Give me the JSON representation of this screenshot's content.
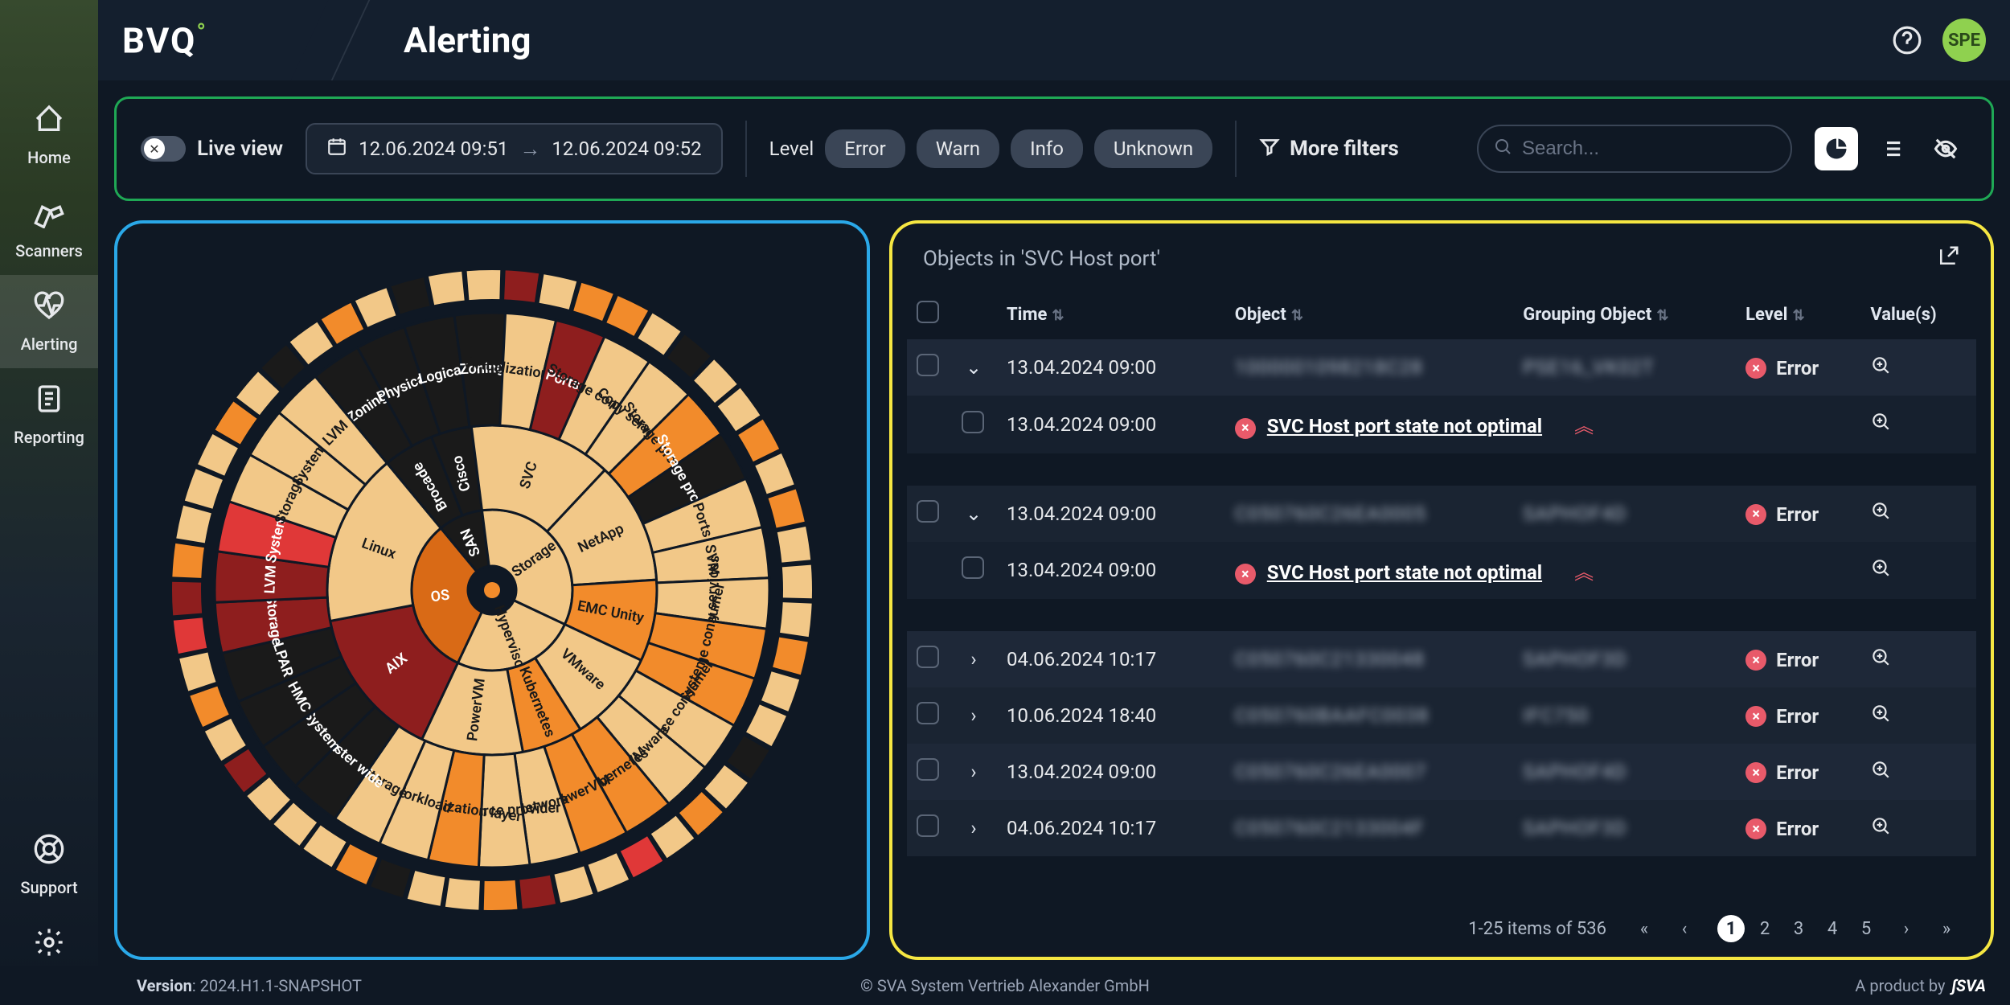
{
  "header": {
    "logo": "BVQ",
    "page_title": "Alerting",
    "avatar_initials": "SPE"
  },
  "sidebar": {
    "items": [
      {
        "label": "Home",
        "icon": "home"
      },
      {
        "label": "Scanners",
        "icon": "telescope"
      },
      {
        "label": "Alerting",
        "icon": "heartbeat",
        "active": true
      },
      {
        "label": "Reporting",
        "icon": "document"
      }
    ],
    "bottom": [
      {
        "label": "Support",
        "icon": "lifebuoy"
      },
      {
        "label": "Admin",
        "icon": "gear"
      }
    ]
  },
  "filters": {
    "live_label": "Live view",
    "date_from": "12.06.2024 09:51",
    "date_to": "12.06.2024 09:52",
    "level_label": "Level",
    "level_chips": [
      "Error",
      "Warn",
      "Info",
      "Unknown"
    ],
    "more_filters": "More filters",
    "search_placeholder": "Search..."
  },
  "table": {
    "title": "Objects in 'SVC Host port'",
    "columns": [
      "",
      "",
      "Time",
      "Object",
      "Grouping Object",
      "Level",
      "Value(s)"
    ],
    "detail_text": "SVC Host port state not optimal",
    "rows": [
      {
        "expanded": true,
        "time": "13.04.2024 09:00",
        "object": "1000001098218C28",
        "group": "PSE16_VK02T",
        "level": "Error",
        "detail_time": "13.04.2024 09:00"
      },
      {
        "expanded": true,
        "time": "13.04.2024 09:00",
        "object": "C050760C26EA0005",
        "group": "SAPHOF4D",
        "level": "Error",
        "detail_time": "13.04.2024 09:00"
      },
      {
        "expanded": false,
        "time": "04.06.2024 10:17",
        "object": "C050760C21330048",
        "group": "SAPHOF3D",
        "level": "Error"
      },
      {
        "expanded": false,
        "time": "10.06.2024 18:40",
        "object": "C050760BAAFC0038",
        "group": "IFC750",
        "level": "Error"
      },
      {
        "expanded": false,
        "time": "13.04.2024 09:00",
        "object": "C050760C26EA0007",
        "group": "SAPHOF4D",
        "level": "Error"
      },
      {
        "expanded": false,
        "time": "04.06.2024 10:17",
        "object": "C050760C2133004F",
        "group": "SAPHOF3D",
        "level": "Error"
      }
    ],
    "pagination": {
      "summary": "1-25 items of 536",
      "pages": [
        1,
        2,
        3,
        4,
        5
      ],
      "current": 1
    }
  },
  "sunburst": {
    "center_label": "",
    "colors": {
      "tan": "#f2c888",
      "orange": "#f28b2b",
      "dark_red": "#8e1e1e",
      "red": "#e03838",
      "black": "#1a1a1a",
      "orange_dark": "#d96a16"
    },
    "ring1": [
      {
        "label": "SAN",
        "color": "black",
        "text_color": "light"
      },
      {
        "label": "Storage",
        "color": "tan"
      },
      {
        "label": "OS",
        "color": "orange_dark",
        "text_color": "light"
      }
    ],
    "ring2": [
      {
        "label": "Brocade",
        "color": "black",
        "text_color": "light"
      },
      {
        "label": "Cisco",
        "color": "black",
        "text_color": "light"
      },
      {
        "label": "SVC",
        "color": "tan"
      },
      {
        "label": "NetApp",
        "color": "tan"
      },
      {
        "label": "EMC Unity",
        "color": "orange"
      },
      {
        "label": "Hypervisor",
        "color": "tan"
      },
      {
        "label": "AIX",
        "color": "dark_red",
        "text_color": "light"
      },
      {
        "label": "Linux",
        "color": "tan"
      }
    ],
    "ring3_sample_labels": [
      "Zoning",
      "Physical",
      "Logical",
      "Zoning",
      "Virtualization layer",
      "Ports",
      "Storage consumer",
      "Copy services",
      "Storage provider -",
      "Storage provider",
      "Ports",
      "SVM",
      "Copy services",
      "Storage consumer",
      "System",
      "Resource consumer",
      "VMware",
      "Kubernetes",
      "PowerVM",
      "Network",
      "Resource provider",
      "Virtualization layer",
      "Workload",
      "Storage",
      "Cluster wide",
      "System",
      "HMC",
      "LPAR",
      "Storage",
      "LVM",
      "System",
      "Storage",
      "System",
      "LVM"
    ]
  },
  "footer": {
    "version_label": "Version",
    "version": "2024.H1.1-SNAPSHOT",
    "copyright": "© SVA System Vertrieb Alexander GmbH",
    "product_by": "A product by",
    "brand": "SVA"
  },
  "highlight_colors": {
    "filter_border": "#1fa855",
    "sunburst_border": "#2aa8e8",
    "table_border": "#f5e642"
  }
}
